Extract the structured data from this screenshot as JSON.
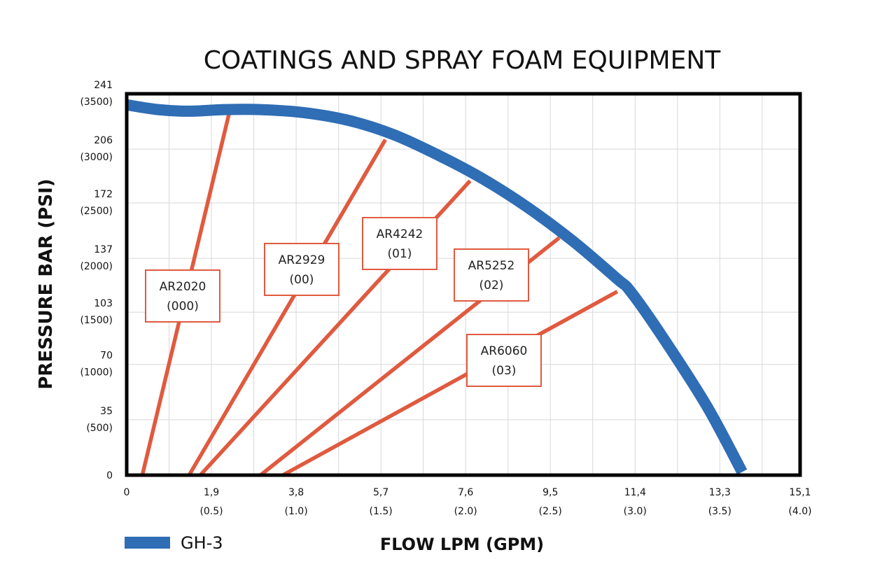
{
  "chart_data": {
    "type": "line",
    "title": "COATINGS AND SPRAY FOAM EQUIPMENT",
    "xlabel": "FLOW LPM (GPM)",
    "ylabel": "PRESSURE BAR (PSI)",
    "xlim": [
      0,
      15.1
    ],
    "ylim": [
      0,
      241
    ],
    "grid": true,
    "legend_position": "bottom-left",
    "x_ticks": [
      {
        "value": 0,
        "label": "0",
        "sub": ""
      },
      {
        "value": 1.9,
        "label": "1,9",
        "sub": "(0.5)"
      },
      {
        "value": 3.8,
        "label": "3,8",
        "sub": "(1.0)"
      },
      {
        "value": 5.7,
        "label": "5,7",
        "sub": "(1.5)"
      },
      {
        "value": 7.6,
        "label": "7,6",
        "sub": "(2.0)"
      },
      {
        "value": 9.5,
        "label": "9,5",
        "sub": "(2.5)"
      },
      {
        "value": 11.4,
        "label": "11,4",
        "sub": "(3.0)"
      },
      {
        "value": 13.3,
        "label": "13,3",
        "sub": "(3.5)"
      },
      {
        "value": 15.1,
        "label": "15,1",
        "sub": "(4.0)"
      }
    ],
    "y_ticks": [
      {
        "value": 0,
        "label": "0",
        "sub": ""
      },
      {
        "value": 35,
        "label": "35",
        "sub": "(500)"
      },
      {
        "value": 70,
        "label": "70",
        "sub": "(1000)"
      },
      {
        "value": 103,
        "label": "103",
        "sub": "(1500)"
      },
      {
        "value": 137,
        "label": "137",
        "sub": "(2000)"
      },
      {
        "value": 172,
        "label": "172",
        "sub": "(2500)"
      },
      {
        "value": 206,
        "label": "206",
        "sub": "(3000)"
      },
      {
        "value": 241,
        "label": "241",
        "sub": "(3500)"
      }
    ],
    "series": [
      {
        "name": "GH-3",
        "color": "#2f6db5",
        "x": [
          0,
          0.7,
          1.4,
          2.2,
          3.0,
          4.0,
          5.0,
          6.0,
          7.0,
          8.0,
          9.0,
          10.0,
          11.0,
          11.3,
          12.0,
          13.0,
          13.8
        ],
        "y": [
          234,
          231,
          230,
          231,
          231,
          229,
          224,
          215,
          202,
          187,
          169,
          148,
          124,
          116,
          88,
          44,
          2
        ]
      }
    ],
    "tip_lines": [
      {
        "name": "AR2020",
        "code": "(000)",
        "color": "#e05a3f",
        "x": [
          0.35,
          2.3
        ],
        "y": [
          0,
          229
        ]
      },
      {
        "name": "AR2929",
        "code": "(00)",
        "color": "#e05a3f",
        "x": [
          1.4,
          5.8
        ],
        "y": [
          0,
          212
        ]
      },
      {
        "name": "AR4242",
        "code": "(01)",
        "color": "#e05a3f",
        "x": [
          1.65,
          7.7
        ],
        "y": [
          0,
          186
        ]
      },
      {
        "name": "AR5252",
        "code": "(02)",
        "color": "#e05a3f",
        "x": [
          3.0,
          9.7
        ],
        "y": [
          0,
          150
        ]
      },
      {
        "name": "AR6060",
        "code": "(03)",
        "color": "#e05a3f",
        "x": [
          3.5,
          11.0
        ],
        "y": [
          0,
          116
        ]
      }
    ]
  }
}
